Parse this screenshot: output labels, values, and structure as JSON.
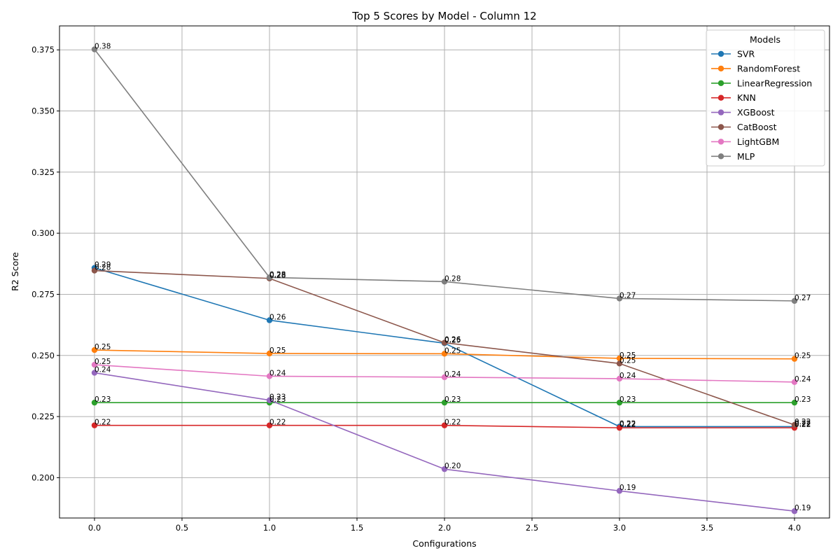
{
  "chart_data": {
    "type": "line",
    "title": "Top 5 Scores by Model - Column 12",
    "xlabel": "Configurations",
    "ylabel": "R2 Score",
    "xlim": [
      -0.2,
      4.2
    ],
    "ylim": [
      0.1835,
      0.3848
    ],
    "x": [
      0,
      1,
      2,
      3,
      4
    ],
    "x_ticks": [
      "0.0",
      "0.5",
      "1.0",
      "1.5",
      "2.0",
      "2.5",
      "3.0",
      "3.5",
      "4.0"
    ],
    "y_ticks": [
      "0.200",
      "0.225",
      "0.250",
      "0.275",
      "0.300",
      "0.325",
      "0.350",
      "0.375"
    ],
    "grid": true,
    "legend_title": "Models",
    "legend_position": "top-right",
    "series": [
      {
        "name": "SVR",
        "color": "#1f77b4",
        "values": [
          0.2858,
          0.2644,
          0.255,
          0.2209,
          0.2209
        ],
        "labels": [
          "0.29",
          "0.26",
          "0.25",
          "0.22",
          "0.22"
        ]
      },
      {
        "name": "RandomForest",
        "color": "#ff7f0e",
        "values": [
          0.2522,
          0.2508,
          0.2507,
          0.2488,
          0.2486
        ],
        "labels": [
          "0.25",
          "0.25",
          "0.25",
          "0.25",
          "0.25"
        ]
      },
      {
        "name": "LinearRegression",
        "color": "#2ca02c",
        "values": [
          0.2307,
          0.2307,
          0.2307,
          0.2307,
          0.2307
        ],
        "labels": [
          "0.23",
          "0.23",
          "0.23",
          "0.23",
          "0.23"
        ]
      },
      {
        "name": "KNN",
        "color": "#d62728",
        "values": [
          0.2214,
          0.2214,
          0.2214,
          0.2204,
          0.2204
        ],
        "labels": [
          "0.22",
          "0.22",
          "0.22",
          "0.22",
          "0.22"
        ]
      },
      {
        "name": "XGBoost",
        "color": "#9467bd",
        "values": [
          0.2429,
          0.2317,
          0.2035,
          0.1946,
          0.1863
        ],
        "labels": [
          "0.24",
          "0.23",
          "0.20",
          "0.19",
          "0.19"
        ]
      },
      {
        "name": "CatBoost",
        "color": "#8c564b",
        "values": [
          0.2847,
          0.2815,
          0.2552,
          0.2467,
          0.2216
        ],
        "labels": [
          "0.28",
          "0.28",
          "0.26",
          "0.25",
          "0.22"
        ]
      },
      {
        "name": "LightGBM",
        "color": "#e377c2",
        "values": [
          0.2462,
          0.2415,
          0.2411,
          0.2405,
          0.2391
        ],
        "labels": [
          "0.25",
          "0.24",
          "0.24",
          "0.24",
          "0.24"
        ]
      },
      {
        "name": "MLP",
        "color": "#7f7f7f",
        "values": [
          0.3752,
          0.2819,
          0.2802,
          0.2733,
          0.2723
        ],
        "labels": [
          "0.38",
          "0.28",
          "0.28",
          "0.27",
          "0.27"
        ]
      }
    ]
  }
}
